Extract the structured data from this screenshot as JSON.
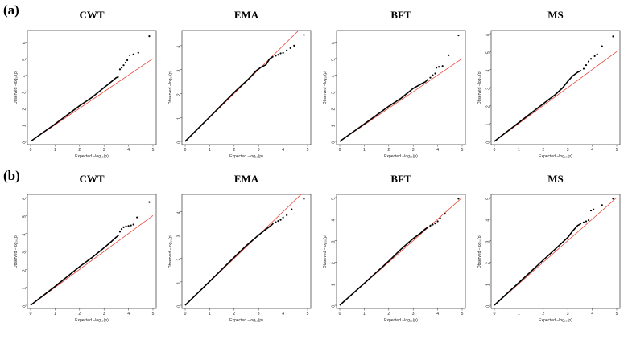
{
  "figure": {
    "row_labels": [
      "(a)",
      "(b)"
    ],
    "x_axis_label": "Expected  −log₁₀(p)",
    "y_axis_label": "Observed  −log₁₀(p)",
    "colors": {
      "points": "#000000",
      "reference_line": "#e8463a",
      "frame": "#333333"
    }
  },
  "chart_data": [
    {
      "type": "scatter",
      "row": "(a)",
      "title": "CWT",
      "xlim": [
        0,
        5
      ],
      "ylim": [
        0,
        6.5
      ],
      "xticks": [
        0,
        1,
        2,
        3,
        4,
        5
      ],
      "yticks": [
        0,
        1,
        2,
        3,
        4,
        5,
        6
      ],
      "reference_line": {
        "from": [
          0,
          0
        ],
        "to": [
          5,
          5
        ]
      },
      "curve": [
        [
          0,
          0
        ],
        [
          1,
          1.05
        ],
        [
          2,
          2.15
        ],
        [
          2.5,
          2.65
        ],
        [
          3,
          3.25
        ],
        [
          3.3,
          3.6
        ],
        [
          3.5,
          3.85
        ],
        [
          3.6,
          3.9
        ]
      ],
      "points": [
        [
          3.65,
          4.35
        ],
        [
          3.72,
          4.45
        ],
        [
          3.8,
          4.6
        ],
        [
          3.88,
          4.75
        ],
        [
          3.95,
          4.9
        ],
        [
          4.05,
          5.2
        ],
        [
          4.2,
          5.25
        ],
        [
          4.4,
          5.35
        ],
        [
          4.85,
          6.35
        ]
      ]
    },
    {
      "type": "scatter",
      "row": "(a)",
      "title": "EMA",
      "xlim": [
        0,
        5
      ],
      "ylim": [
        0,
        4.5
      ],
      "xticks": [
        0,
        1,
        2,
        3,
        4,
        5
      ],
      "yticks": [
        0,
        1,
        2,
        3,
        4
      ],
      "reference_line": {
        "from": [
          0,
          0
        ],
        "to": [
          5,
          5
        ]
      },
      "curve": [
        [
          0,
          0
        ],
        [
          1,
          1.02
        ],
        [
          2,
          2.05
        ],
        [
          2.6,
          2.62
        ],
        [
          2.9,
          2.95
        ],
        [
          3.1,
          3.1
        ],
        [
          3.3,
          3.2
        ],
        [
          3.45,
          3.45
        ],
        [
          3.6,
          3.55
        ]
      ],
      "points": [
        [
          3.7,
          3.58
        ],
        [
          3.8,
          3.62
        ],
        [
          3.9,
          3.68
        ],
        [
          4.0,
          3.7
        ],
        [
          4.15,
          3.8
        ],
        [
          4.3,
          3.9
        ],
        [
          4.45,
          4.0
        ],
        [
          4.85,
          4.45
        ]
      ]
    },
    {
      "type": "scatter",
      "row": "(a)",
      "title": "BFT",
      "xlim": [
        0,
        5
      ],
      "ylim": [
        0,
        6.5
      ],
      "xticks": [
        0,
        1,
        2,
        3,
        4,
        5
      ],
      "yticks": [
        0,
        1,
        2,
        3,
        4,
        5,
        6
      ],
      "reference_line": {
        "from": [
          0,
          0
        ],
        "to": [
          5,
          5
        ]
      },
      "curve": [
        [
          0,
          0
        ],
        [
          1,
          1.05
        ],
        [
          2,
          2.12
        ],
        [
          2.5,
          2.6
        ],
        [
          3,
          3.2
        ],
        [
          3.3,
          3.45
        ],
        [
          3.5,
          3.6
        ],
        [
          3.6,
          3.75
        ]
      ],
      "points": [
        [
          3.7,
          3.85
        ],
        [
          3.8,
          4.0
        ],
        [
          3.9,
          4.1
        ],
        [
          3.95,
          4.45
        ],
        [
          4.05,
          4.5
        ],
        [
          4.2,
          4.55
        ],
        [
          4.45,
          5.2
        ],
        [
          4.85,
          6.4
        ]
      ]
    },
    {
      "type": "scatter",
      "row": "(a)",
      "title": "MS",
      "xlim": [
        0,
        5
      ],
      "ylim": [
        0,
        6
      ],
      "xticks": [
        0,
        1,
        2,
        3,
        4,
        5
      ],
      "yticks": [
        0,
        1,
        2,
        3,
        4,
        5,
        6
      ],
      "reference_line": {
        "from": [
          0,
          0
        ],
        "to": [
          5,
          5
        ]
      },
      "curve": [
        [
          0,
          0
        ],
        [
          1,
          1.05
        ],
        [
          2,
          2.1
        ],
        [
          2.5,
          2.62
        ],
        [
          2.8,
          3.0
        ],
        [
          3.0,
          3.35
        ],
        [
          3.2,
          3.65
        ],
        [
          3.4,
          3.85
        ],
        [
          3.55,
          3.95
        ]
      ],
      "points": [
        [
          3.65,
          4.05
        ],
        [
          3.75,
          4.25
        ],
        [
          3.85,
          4.45
        ],
        [
          3.95,
          4.6
        ],
        [
          4.1,
          4.75
        ],
        [
          4.2,
          4.85
        ],
        [
          4.4,
          5.3
        ],
        [
          4.85,
          5.85
        ]
      ]
    },
    {
      "type": "scatter",
      "row": "(b)",
      "title": "CWT",
      "xlim": [
        0,
        5
      ],
      "ylim": [
        0,
        6
      ],
      "xticks": [
        0,
        1,
        2,
        3,
        4,
        5
      ],
      "yticks": [
        0,
        1,
        2,
        3,
        4,
        5,
        6
      ],
      "reference_line": {
        "from": [
          0,
          0
        ],
        "to": [
          5,
          5
        ]
      },
      "curve": [
        [
          0,
          0
        ],
        [
          1,
          1.05
        ],
        [
          2,
          2.15
        ],
        [
          2.5,
          2.65
        ],
        [
          3,
          3.2
        ],
        [
          3.3,
          3.55
        ],
        [
          3.5,
          3.8
        ],
        [
          3.6,
          3.9
        ]
      ],
      "points": [
        [
          3.65,
          4.1
        ],
        [
          3.72,
          4.25
        ],
        [
          3.8,
          4.35
        ],
        [
          3.9,
          4.4
        ],
        [
          4.0,
          4.42
        ],
        [
          4.1,
          4.45
        ],
        [
          4.2,
          4.5
        ],
        [
          4.35,
          4.9
        ],
        [
          4.85,
          5.75
        ]
      ]
    },
    {
      "type": "scatter",
      "row": "(b)",
      "title": "EMA",
      "xlim": [
        0,
        5
      ],
      "ylim": [
        0,
        4.6
      ],
      "xticks": [
        0,
        1,
        2,
        3,
        4,
        5
      ],
      "yticks": [
        0,
        1,
        2,
        3,
        4
      ],
      "reference_line": {
        "from": [
          0,
          0
        ],
        "to": [
          5,
          5
        ]
      },
      "curve": [
        [
          0,
          0
        ],
        [
          1,
          1.02
        ],
        [
          2,
          2.05
        ],
        [
          2.5,
          2.55
        ],
        [
          3,
          3.0
        ],
        [
          3.3,
          3.25
        ],
        [
          3.5,
          3.4
        ],
        [
          3.6,
          3.5
        ]
      ],
      "points": [
        [
          3.7,
          3.55
        ],
        [
          3.8,
          3.6
        ],
        [
          3.9,
          3.65
        ],
        [
          4.0,
          3.75
        ],
        [
          4.15,
          3.85
        ],
        [
          4.35,
          4.1
        ],
        [
          4.85,
          4.55
        ]
      ]
    },
    {
      "type": "scatter",
      "row": "(b)",
      "title": "BFT",
      "xlim": [
        0,
        5
      ],
      "ylim": [
        0,
        5
      ],
      "xticks": [
        0,
        1,
        2,
        3,
        4,
        5
      ],
      "yticks": [
        0,
        1,
        2,
        3,
        4,
        5
      ],
      "reference_line": {
        "from": [
          0,
          0
        ],
        "to": [
          5,
          5
        ]
      },
      "curve": [
        [
          0,
          0
        ],
        [
          1,
          1.02
        ],
        [
          2,
          2.05
        ],
        [
          2.5,
          2.6
        ],
        [
          3,
          3.1
        ],
        [
          3.3,
          3.35
        ],
        [
          3.5,
          3.55
        ],
        [
          3.6,
          3.62
        ]
      ],
      "points": [
        [
          3.7,
          3.7
        ],
        [
          3.8,
          3.75
        ],
        [
          3.9,
          3.8
        ],
        [
          4.0,
          3.9
        ],
        [
          4.1,
          4.05
        ],
        [
          4.3,
          4.25
        ],
        [
          4.85,
          4.95
        ]
      ]
    },
    {
      "type": "scatter",
      "row": "(b)",
      "title": "MS",
      "xlim": [
        0,
        5
      ],
      "ylim": [
        0,
        5
      ],
      "xticks": [
        0,
        1,
        2,
        3,
        4,
        5
      ],
      "yticks": [
        0,
        1,
        2,
        3,
        4,
        5
      ],
      "reference_line": {
        "from": [
          0,
          0
        ],
        "to": [
          5,
          5
        ]
      },
      "curve": [
        [
          0,
          0
        ],
        [
          1,
          1.05
        ],
        [
          2,
          2.1
        ],
        [
          2.5,
          2.62
        ],
        [
          3,
          3.15
        ],
        [
          3.2,
          3.45
        ],
        [
          3.4,
          3.7
        ],
        [
          3.55,
          3.8
        ]
      ],
      "points": [
        [
          3.65,
          3.85
        ],
        [
          3.75,
          3.9
        ],
        [
          3.85,
          3.95
        ],
        [
          3.95,
          4.4
        ],
        [
          4.05,
          4.45
        ],
        [
          4.4,
          4.65
        ],
        [
          4.85,
          4.95
        ]
      ]
    }
  ]
}
